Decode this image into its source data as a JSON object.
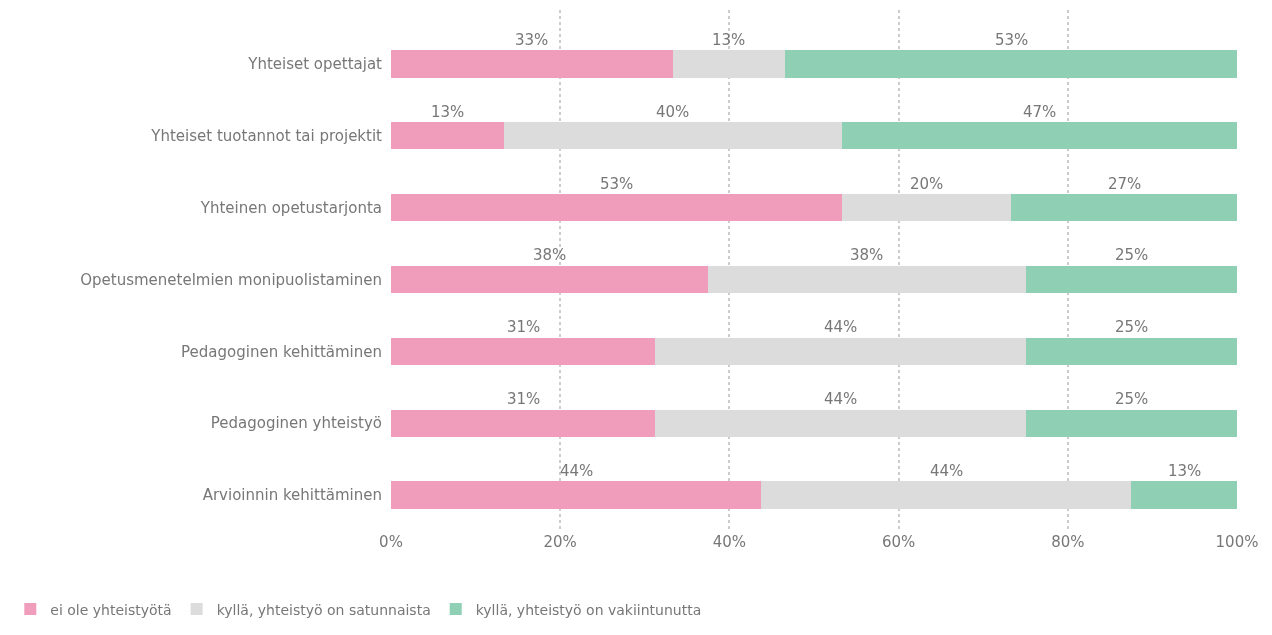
{
  "chart_data": {
    "type": "bar",
    "orientation": "horizontal",
    "stacked": true,
    "categories": [
      "Yhteiset opettajat",
      "Yhteiset tuotannot tai projektit",
      "Yhteinen opetustarjonta",
      "Opetusmenetelmien monipuolistaminen",
      "Pedagoginen kehittäminen",
      "Pedagoginen yhteistyö",
      "Arvioinnin kehittäminen"
    ],
    "series": [
      {
        "name": "ei ole yhteistyötä",
        "color": "#f09dbb",
        "values": [
          33.3,
          13.3,
          53.3,
          37.5,
          31.25,
          31.25,
          43.75
        ],
        "value_labels": [
          "33%",
          "13%",
          "53%",
          "38%",
          "31%",
          "31%",
          "44%"
        ]
      },
      {
        "name": "kyllä, yhteistyö on satunnaista",
        "color": "#dcdcdc",
        "values": [
          13.3,
          40,
          20,
          37.5,
          43.75,
          43.75,
          43.75
        ],
        "value_labels": [
          "13%",
          "40%",
          "20%",
          "38%",
          "44%",
          "44%",
          "44%"
        ]
      },
      {
        "name": "kyllä, yhteistyö on vakiintunutta",
        "color": "#8fcfb4",
        "values": [
          53.4,
          46.7,
          26.7,
          25,
          25,
          25,
          12.5
        ],
        "value_labels": [
          "53%",
          "47%",
          "27%",
          "25%",
          "25%",
          "25%",
          "13%"
        ]
      }
    ],
    "xlim": [
      0,
      100
    ],
    "xticks": [
      {
        "value": 0,
        "label": "0%"
      },
      {
        "value": 20,
        "label": "20%"
      },
      {
        "value": 40,
        "label": "40%"
      },
      {
        "value": 60,
        "label": "60%"
      },
      {
        "value": 80,
        "label": "80%"
      },
      {
        "value": 100,
        "label": "100%"
      }
    ],
    "grid": "x",
    "legend": "bottom left"
  }
}
